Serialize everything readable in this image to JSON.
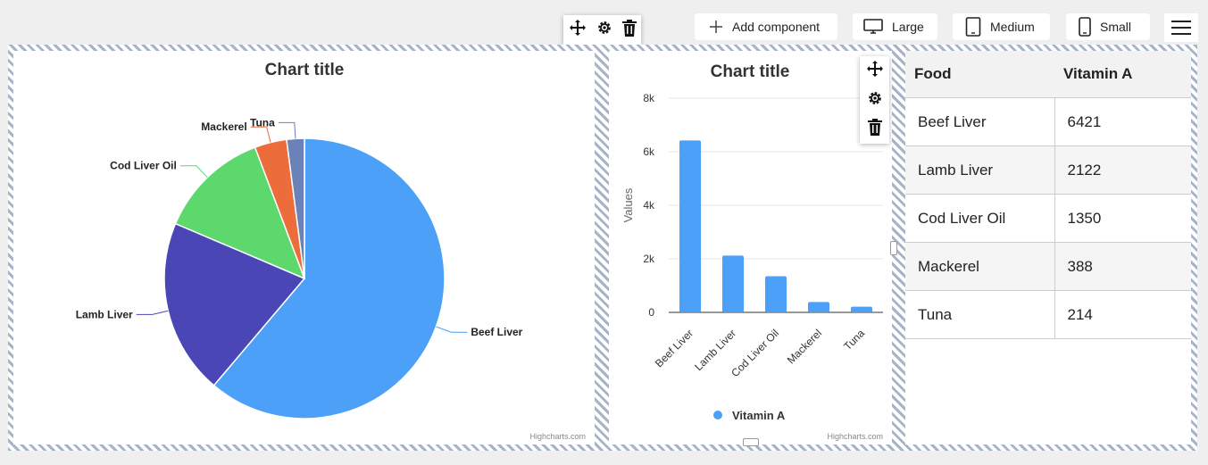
{
  "toolbar": {
    "add_component": "Add component",
    "large": "Large",
    "medium": "Medium",
    "small": "Small"
  },
  "pie_chart": {
    "title": "Chart title",
    "credit": "Highcharts.com"
  },
  "bar_chart": {
    "title": "Chart title",
    "credit": "Highcharts.com",
    "ylabel": "Values",
    "yticks": [
      "0",
      "2k",
      "4k",
      "6k",
      "8k"
    ],
    "legend": "Vitamin A"
  },
  "table": {
    "headers": [
      "Food",
      "Vitamin A"
    ],
    "rows": [
      [
        "Beef Liver",
        "6421"
      ],
      [
        "Lamb Liver",
        "2122"
      ],
      [
        "Cod Liver Oil",
        "1350"
      ],
      [
        "Mackerel",
        "388"
      ],
      [
        "Tuna",
        "214"
      ]
    ]
  },
  "chart_data": [
    {
      "type": "pie",
      "title": "Chart title",
      "categories": [
        "Beef Liver",
        "Lamb Liver",
        "Cod Liver Oil",
        "Mackerel",
        "Tuna"
      ],
      "values": [
        6421,
        2122,
        1350,
        388,
        214
      ],
      "colors": [
        "#4ca0f7",
        "#4a46b6",
        "#5cd86d",
        "#ec6c3b",
        "#6a82b7"
      ]
    },
    {
      "type": "bar",
      "title": "Chart title",
      "categories": [
        "Beef Liver",
        "Lamb Liver",
        "Cod Liver Oil",
        "Mackerel",
        "Tuna"
      ],
      "series": [
        {
          "name": "Vitamin A",
          "values": [
            6421,
            2122,
            1350,
            388,
            214
          ]
        }
      ],
      "ylabel": "Values",
      "ylim": [
        0,
        8000
      ],
      "grid": true,
      "legend": "bottom",
      "color": "#4ca0f7"
    }
  ]
}
